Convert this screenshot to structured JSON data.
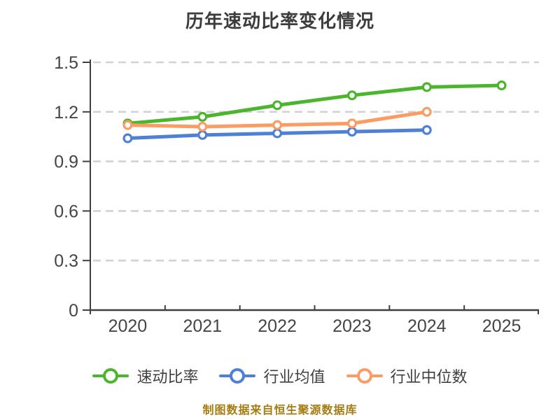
{
  "caption": "制图数据来自恒生聚源数据库",
  "colors": {
    "quick_ratio": "#4ab52d",
    "industry_avg": "#4e80d5",
    "industry_median": "#fa9c64",
    "axis": "#3f3f3f",
    "gridline": "#d2d2d2",
    "tick_label": "#454545",
    "title_text": "#3c3c3c",
    "legend_text": "#3f3f3f",
    "caption_text": "#a57c10",
    "marker_fill": "#ffffff"
  },
  "chart_data": {
    "type": "line",
    "title": "历年速动比率变化情况",
    "categories": [
      "2020",
      "2021",
      "2022",
      "2023",
      "2024",
      "2025"
    ],
    "series": [
      {
        "name": "速动比率",
        "color_key": "quick_ratio",
        "values": [
          1.13,
          1.17,
          1.24,
          1.3,
          1.35,
          1.36
        ]
      },
      {
        "name": "行业均值",
        "color_key": "industry_avg",
        "values": [
          1.04,
          1.06,
          1.07,
          1.08,
          1.09,
          null
        ]
      },
      {
        "name": "行业中位数",
        "color_key": "industry_median",
        "values": [
          1.12,
          1.11,
          1.12,
          1.13,
          1.2,
          null
        ]
      }
    ],
    "xlabel": "",
    "ylabel": "",
    "ylim": [
      0,
      1.5
    ],
    "yticks": [
      0,
      0.3,
      0.6,
      0.9,
      1.2,
      1.5
    ],
    "grid": "dashed-horizontal",
    "legend_position": "bottom"
  }
}
